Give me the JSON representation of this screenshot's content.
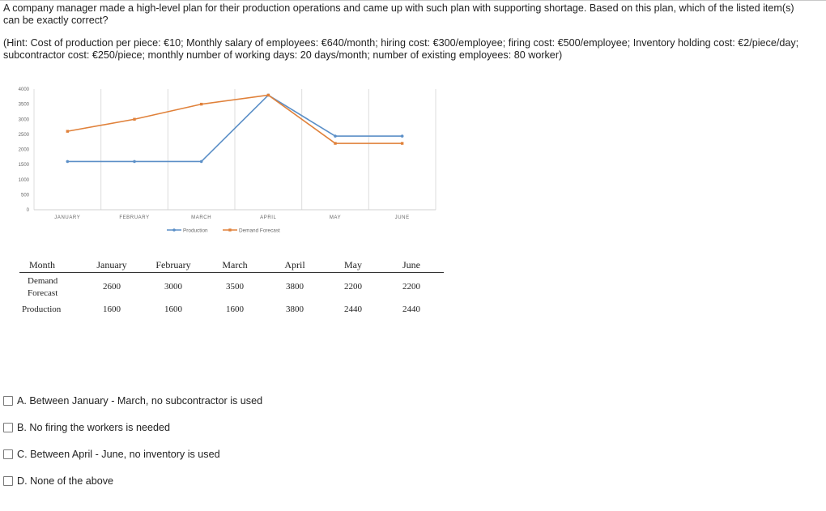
{
  "question": {
    "text": "A company manager made a high-level plan for their production operations and came up with such plan with supporting shortage. Based on this plan, which of the listed item(s) can be exactly correct?",
    "hint": "(Hint: Cost of production per piece: €10; Monthly salary of employees: €640/month; hiring cost: €300/employee; firing cost: €500/employee; Inventory holding cost: €2/piece/day; subcontractor cost: €250/piece; monthly number of working days: 20 days/month; number of existing employees: 80 worker)"
  },
  "chart_data": {
    "type": "line",
    "categories": [
      "JANUARY",
      "FEBRUARY",
      "MARCH",
      "APRIL",
      "MAY",
      "JUNE"
    ],
    "series": [
      {
        "name": "Production",
        "values": [
          1600,
          1600,
          1600,
          3800,
          2440,
          2440
        ],
        "color": "#5b8fc7"
      },
      {
        "name": "Demand Forecast",
        "values": [
          2600,
          3000,
          3500,
          3800,
          2200,
          2200
        ],
        "color": "#e0813a"
      }
    ],
    "ylim": [
      0,
      4000
    ],
    "yticks": [
      "0",
      "500",
      "1000",
      "1500",
      "2000",
      "2500",
      "3000",
      "3500",
      "4000"
    ],
    "grid": "vertical",
    "legend_position": "bottom"
  },
  "table": {
    "headers": [
      "Month",
      "January",
      "February",
      "March",
      "April",
      "May",
      "June"
    ],
    "rows": [
      {
        "label_line1": "Demand",
        "label_line2": "Forecast",
        "values": [
          "2600",
          "3000",
          "3500",
          "3800",
          "2200",
          "2200"
        ]
      },
      {
        "label_line1": "Production",
        "label_line2": "",
        "values": [
          "1600",
          "1600",
          "1600",
          "3800",
          "2440",
          "2440"
        ]
      }
    ]
  },
  "options": [
    {
      "label": "A. Between January - March, no subcontractor is used"
    },
    {
      "label": "B. No firing the workers is needed"
    },
    {
      "label": "C. Between April - June, no inventory is used"
    },
    {
      "label": "D. None of the above"
    }
  ]
}
